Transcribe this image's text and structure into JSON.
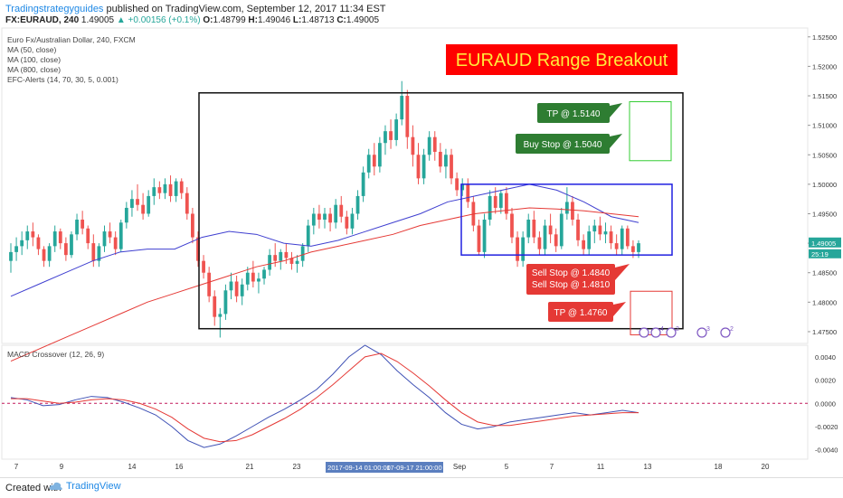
{
  "header": {
    "author": "Tradingstrategyguides",
    "published": "published on TradingView.com, September 12, 2017 11:34 EST",
    "symbol": "FX:EURAUD, 240",
    "last": "1.49005",
    "change": "▲ +0.00156 (+0.1%)",
    "o_label": "O:",
    "o": "1.48799",
    "h_label": "H:",
    "h": "1.49046",
    "l_label": "L:",
    "l": "1.48713",
    "c_label": "C:",
    "c": "1.49005"
  },
  "legend": [
    "Euro Fx/Australian Dollar, 240, FXCM",
    "MA (50, close)",
    "MA (100, close)",
    "MA (800, close)",
    "EFC-Alerts (14, 70, 30, 5, 0.001)"
  ],
  "banner": "EURAUD Range Breakout",
  "annotations": {
    "tp_upper": "TP @ 1.5140",
    "buy_stop": "Buy Stop @ 1.5040",
    "sell_stop_1": "Sell Stop @ 1.4840",
    "sell_stop_2": "Sell Stop @ 1.4810",
    "tp_lower": "TP @ 1.4760"
  },
  "price_axis": [
    "1.52500",
    "1.52000",
    "1.51500",
    "1.51000",
    "1.50500",
    "1.50000",
    "1.49500",
    "1.49000",
    "1.48500",
    "1.48000",
    "1.47500"
  ],
  "price_tags": {
    "last": "1.49005",
    "countdown": "25:19"
  },
  "macd_label": "MACD Crossover (12, 26, 9)",
  "macd_axis": [
    "0.0040",
    "0.0020",
    "0.0000",
    "-0.0020",
    "-0.0040"
  ],
  "time_axis": [
    "7",
    "9",
    "14",
    "16",
    "21",
    "23",
    "Sep",
    "5",
    "7",
    "11",
    "13",
    "18",
    "20"
  ],
  "time_highlight": [
    "2017-09-14 01:00:00",
    "17-09-17 21:00:00"
  ],
  "event_badges": [
    "4",
    "2",
    "3",
    "2"
  ],
  "footer": {
    "created": "Created with",
    "brand": "TradingView"
  },
  "colors": {
    "up": "#26a69a",
    "down": "#ef5350",
    "ma_blue": "#3f3fd0",
    "ma_red": "#e53935",
    "banner_bg": "#ff0000",
    "banner_text": "#ffeb3b",
    "green_box": "#2e7d32",
    "red_box": "#e53935"
  },
  "chart_data": {
    "type": "candlestick",
    "title": "EURAUD Range Breakout",
    "ylim": [
      1.473,
      1.5265
    ],
    "candles": [
      [
        1.487,
        1.49,
        1.485,
        1.4885
      ],
      [
        1.4885,
        1.491,
        1.487,
        1.4895
      ],
      [
        1.4895,
        1.492,
        1.488,
        1.4905
      ],
      [
        1.4905,
        1.493,
        1.489,
        1.492
      ],
      [
        1.492,
        1.4935,
        1.4895,
        1.491
      ],
      [
        1.491,
        1.4915,
        1.488,
        1.489
      ],
      [
        1.489,
        1.4895,
        1.486,
        1.487
      ],
      [
        1.487,
        1.49,
        1.486,
        1.4895
      ],
      [
        1.4895,
        1.493,
        1.4885,
        1.492
      ],
      [
        1.492,
        1.4925,
        1.489,
        1.49
      ],
      [
        1.49,
        1.491,
        1.487,
        1.488
      ],
      [
        1.488,
        1.492,
        1.4875,
        1.4915
      ],
      [
        1.4915,
        1.495,
        1.4905,
        1.494
      ],
      [
        1.494,
        1.4955,
        1.4915,
        1.4925
      ],
      [
        1.4925,
        1.493,
        1.489,
        1.49
      ],
      [
        1.49,
        1.4915,
        1.486,
        1.487
      ],
      [
        1.487,
        1.49,
        1.486,
        1.4895
      ],
      [
        1.4895,
        1.493,
        1.4885,
        1.492
      ],
      [
        1.492,
        1.4935,
        1.49,
        1.491
      ],
      [
        1.491,
        1.492,
        1.488,
        1.489
      ],
      [
        1.489,
        1.494,
        1.4885,
        1.4935
      ],
      [
        1.4935,
        1.497,
        1.4925,
        1.496
      ],
      [
        1.496,
        1.499,
        1.4945,
        1.4975
      ],
      [
        1.4975,
        1.5,
        1.4955,
        1.4965
      ],
      [
        1.4965,
        1.4985,
        1.494,
        1.495
      ],
      [
        1.495,
        1.499,
        1.4945,
        1.498
      ],
      [
        1.498,
        1.501,
        1.4965,
        1.4995
      ],
      [
        1.4995,
        1.5005,
        1.4975,
        1.4985
      ],
      [
        1.4985,
        1.501,
        1.4975,
        1.5
      ],
      [
        1.5,
        1.5015,
        1.497,
        1.498
      ],
      [
        1.498,
        1.501,
        1.497,
        1.5005
      ],
      [
        1.5005,
        1.501,
        1.4975,
        1.4985
      ],
      [
        1.4985,
        1.4995,
        1.494,
        1.495
      ],
      [
        1.495,
        1.496,
        1.49,
        1.491
      ],
      [
        1.491,
        1.492,
        1.486,
        1.487
      ],
      [
        1.487,
        1.488,
        1.484,
        1.485
      ],
      [
        1.485,
        1.486,
        1.48,
        1.481
      ],
      [
        1.481,
        1.482,
        1.476,
        1.4775
      ],
      [
        1.4775,
        1.479,
        1.474,
        1.478
      ],
      [
        1.478,
        1.483,
        1.477,
        1.482
      ],
      [
        1.482,
        1.485,
        1.4805,
        1.4835
      ],
      [
        1.4835,
        1.4845,
        1.48,
        1.481
      ],
      [
        1.481,
        1.484,
        1.4795,
        1.483
      ],
      [
        1.483,
        1.486,
        1.482,
        1.485
      ],
      [
        1.485,
        1.487,
        1.4825,
        1.4835
      ],
      [
        1.4835,
        1.485,
        1.4815,
        1.484
      ],
      [
        1.484,
        1.486,
        1.483,
        1.4855
      ],
      [
        1.4855,
        1.489,
        1.4845,
        1.488
      ],
      [
        1.488,
        1.49,
        1.486,
        1.487
      ],
      [
        1.487,
        1.489,
        1.4855,
        1.4885
      ],
      [
        1.4885,
        1.49,
        1.4865,
        1.4875
      ],
      [
        1.4875,
        1.4885,
        1.4855,
        1.4865
      ],
      [
        1.4865,
        1.488,
        1.485,
        1.487
      ],
      [
        1.487,
        1.49,
        1.486,
        1.4895
      ],
      [
        1.4895,
        1.494,
        1.4885,
        1.493
      ],
      [
        1.493,
        1.496,
        1.4915,
        1.495
      ],
      [
        1.495,
        1.4965,
        1.4925,
        1.494
      ],
      [
        1.494,
        1.496,
        1.4925,
        1.495
      ],
      [
        1.495,
        1.496,
        1.492,
        1.4935
      ],
      [
        1.4935,
        1.4975,
        1.4925,
        1.4965
      ],
      [
        1.4965,
        1.498,
        1.4935,
        1.4945
      ],
      [
        1.4945,
        1.4955,
        1.4915,
        1.4925
      ],
      [
        1.4925,
        1.496,
        1.4915,
        1.495
      ],
      [
        1.495,
        1.499,
        1.494,
        1.498
      ],
      [
        1.498,
        1.503,
        1.497,
        1.502
      ],
      [
        1.502,
        1.506,
        1.501,
        1.505
      ],
      [
        1.505,
        1.507,
        1.5015,
        1.503
      ],
      [
        1.503,
        1.508,
        1.502,
        1.507
      ],
      [
        1.507,
        1.51,
        1.505,
        1.509
      ],
      [
        1.509,
        1.511,
        1.506,
        1.5075
      ],
      [
        1.5075,
        1.512,
        1.5065,
        1.511
      ],
      [
        1.511,
        1.5175,
        1.51,
        1.515
      ],
      [
        1.515,
        1.516,
        1.506,
        1.508
      ],
      [
        1.508,
        1.51,
        1.503,
        1.505
      ],
      [
        1.505,
        1.507,
        1.5,
        1.501
      ],
      [
        1.501,
        1.506,
        1.5,
        1.505
      ],
      [
        1.505,
        1.509,
        1.504,
        1.508
      ],
      [
        1.508,
        1.509,
        1.504,
        1.5055
      ],
      [
        1.5055,
        1.507,
        1.502,
        1.503
      ],
      [
        1.503,
        1.506,
        1.501,
        1.505
      ],
      [
        1.505,
        1.506,
        1.5,
        1.501
      ],
      [
        1.501,
        1.502,
        1.498,
        1.499
      ],
      [
        1.499,
        1.501,
        1.498,
        1.5
      ],
      [
        1.5,
        1.501,
        1.496,
        1.497
      ],
      [
        1.497,
        1.498,
        1.492,
        1.493
      ],
      [
        1.493,
        1.494,
        1.488,
        1.4885
      ],
      [
        1.4885,
        1.495,
        1.4875,
        1.494
      ],
      [
        1.494,
        1.499,
        1.493,
        1.498
      ],
      [
        1.498,
        1.4995,
        1.495,
        1.496
      ],
      [
        1.496,
        1.499,
        1.495,
        1.4985
      ],
      [
        1.4985,
        1.4995,
        1.494,
        1.495
      ],
      [
        1.495,
        1.496,
        1.49,
        1.491
      ],
      [
        1.491,
        1.492,
        1.486,
        1.487
      ],
      [
        1.487,
        1.492,
        1.486,
        1.491
      ],
      [
        1.491,
        1.495,
        1.49,
        1.494
      ],
      [
        1.494,
        1.4955,
        1.49,
        1.491
      ],
      [
        1.491,
        1.492,
        1.488,
        1.489
      ],
      [
        1.489,
        1.494,
        1.488,
        1.493
      ],
      [
        1.493,
        1.495,
        1.49,
        1.4915
      ],
      [
        1.4915,
        1.4925,
        1.4885,
        1.4895
      ],
      [
        1.4895,
        1.496,
        1.489,
        1.495
      ],
      [
        1.495,
        1.4995,
        1.494,
        1.497
      ],
      [
        1.497,
        1.498,
        1.493,
        1.494
      ],
      [
        1.494,
        1.495,
        1.4895,
        1.4905
      ],
      [
        1.4905,
        1.4915,
        1.488,
        1.489
      ],
      [
        1.489,
        1.493,
        1.488,
        1.492
      ],
      [
        1.492,
        1.494,
        1.49,
        1.493
      ],
      [
        1.493,
        1.4945,
        1.4905,
        1.4915
      ],
      [
        1.4915,
        1.4935,
        1.49,
        1.492
      ],
      [
        1.492,
        1.493,
        1.489,
        1.49
      ],
      [
        1.49,
        1.4915,
        1.488,
        1.489
      ],
      [
        1.489,
        1.493,
        1.488,
        1.4925
      ],
      [
        1.4925,
        1.493,
        1.489,
        1.4895
      ],
      [
        1.4895,
        1.4905,
        1.4875,
        1.4885
      ],
      [
        1.4885,
        1.4905,
        1.4875,
        1.49
      ]
    ],
    "ma_blue": [
      1.481,
      1.483,
      1.485,
      1.487,
      1.4885,
      1.489,
      1.489,
      1.491,
      1.492,
      1.4915,
      1.49,
      1.4895,
      1.4905,
      1.492,
      1.4935,
      1.495,
      1.497,
      1.498,
      1.499,
      1.5,
      1.499,
      1.497,
      1.4945,
      1.4935
    ],
    "ma_red": [
      1.47,
      1.472,
      1.474,
      1.476,
      1.478,
      1.48,
      1.4815,
      1.483,
      1.4845,
      1.486,
      1.487,
      1.4885,
      1.4895,
      1.4905,
      1.4915,
      1.493,
      1.494,
      1.495,
      1.4955,
      1.496,
      1.4958,
      1.4955,
      1.495,
      1.4945
    ],
    "macd": [
      0.0005,
      0.0003,
      -0.0002,
      -0.0001,
      0.0003,
      0.0006,
      0.0005,
      0.0001,
      -0.0004,
      -0.001,
      -0.002,
      -0.0032,
      -0.0038,
      -0.0035,
      -0.0028,
      -0.002,
      -0.0012,
      -0.0005,
      0.0003,
      0.0012,
      0.0025,
      0.004,
      0.005,
      0.0042,
      0.0028,
      0.0016,
      0.0005,
      -0.0008,
      -0.0018,
      -0.0022,
      -0.002,
      -0.0016,
      -0.0014,
      -0.0012,
      -0.001,
      -0.0008,
      -0.001,
      -0.0008,
      -0.0006,
      -0.0008
    ],
    "signal": [
      0.0004,
      0.0004,
      0.0002,
      0.0,
      0.0001,
      0.0003,
      0.0004,
      0.0003,
      0.0,
      -0.0005,
      -0.0012,
      -0.0022,
      -0.003,
      -0.0033,
      -0.0032,
      -0.0027,
      -0.002,
      -0.0013,
      -0.0005,
      0.0005,
      0.0016,
      0.0028,
      0.004,
      0.0043,
      0.0036,
      0.0026,
      0.0015,
      0.0003,
      -0.0008,
      -0.0016,
      -0.0019,
      -0.0019,
      -0.0017,
      -0.0015,
      -0.0013,
      -0.0011,
      -0.001,
      -0.0009,
      -0.0008,
      -0.0008
    ],
    "macd_ylim": [
      -0.0048,
      0.005
    ],
    "ranges": {
      "range_high": 1.5,
      "range_low": 1.488,
      "big_box_high": 1.5155,
      "big_box_low": 1.4755
    }
  }
}
